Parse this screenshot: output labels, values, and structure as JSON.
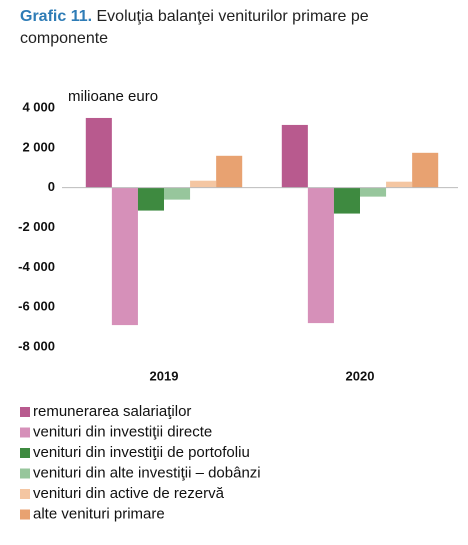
{
  "chart_data": {
    "type": "bar",
    "title_label": "Grafic 11.",
    "title": "Evoluţia balanţei veniturilor primare pe componente",
    "y_label": "milioane euro",
    "categories": [
      "2019",
      "2020"
    ],
    "series": [
      {
        "name": "remunerarea salariaţilor",
        "color": "#b85a8e",
        "values": [
          3500,
          3150
        ]
      },
      {
        "name": "venituri din investiţii directe",
        "color": "#d690b9",
        "values": [
          -6900,
          -6800
        ]
      },
      {
        "name": "venituri din investiţii de portofoliu",
        "color": "#3e8a40",
        "values": [
          -1150,
          -1300
        ]
      },
      {
        "name": "venituri din alte investiţii – dobânzi",
        "color": "#97c69c",
        "values": [
          -600,
          -450
        ]
      },
      {
        "name": "venituri din active de rezervă",
        "color": "#f4c6a2",
        "values": [
          350,
          300
        ]
      },
      {
        "name": "alte venituri primare",
        "color": "#e8a271",
        "values": [
          1600,
          1750
        ]
      }
    ],
    "ylim": [
      -8000,
      4000
    ],
    "yticks": [
      {
        "value": 4000,
        "label": "4 000"
      },
      {
        "value": 2000,
        "label": "2 000"
      },
      0,
      {
        "value": -2000,
        "label": "-2 000"
      },
      {
        "value": -4000,
        "label": "-4 000"
      },
      {
        "value": -6000,
        "label": "-6 000"
      },
      {
        "value": -8000,
        "label": "-8 000"
      }
    ],
    "grid": false,
    "legend": "bottom"
  }
}
